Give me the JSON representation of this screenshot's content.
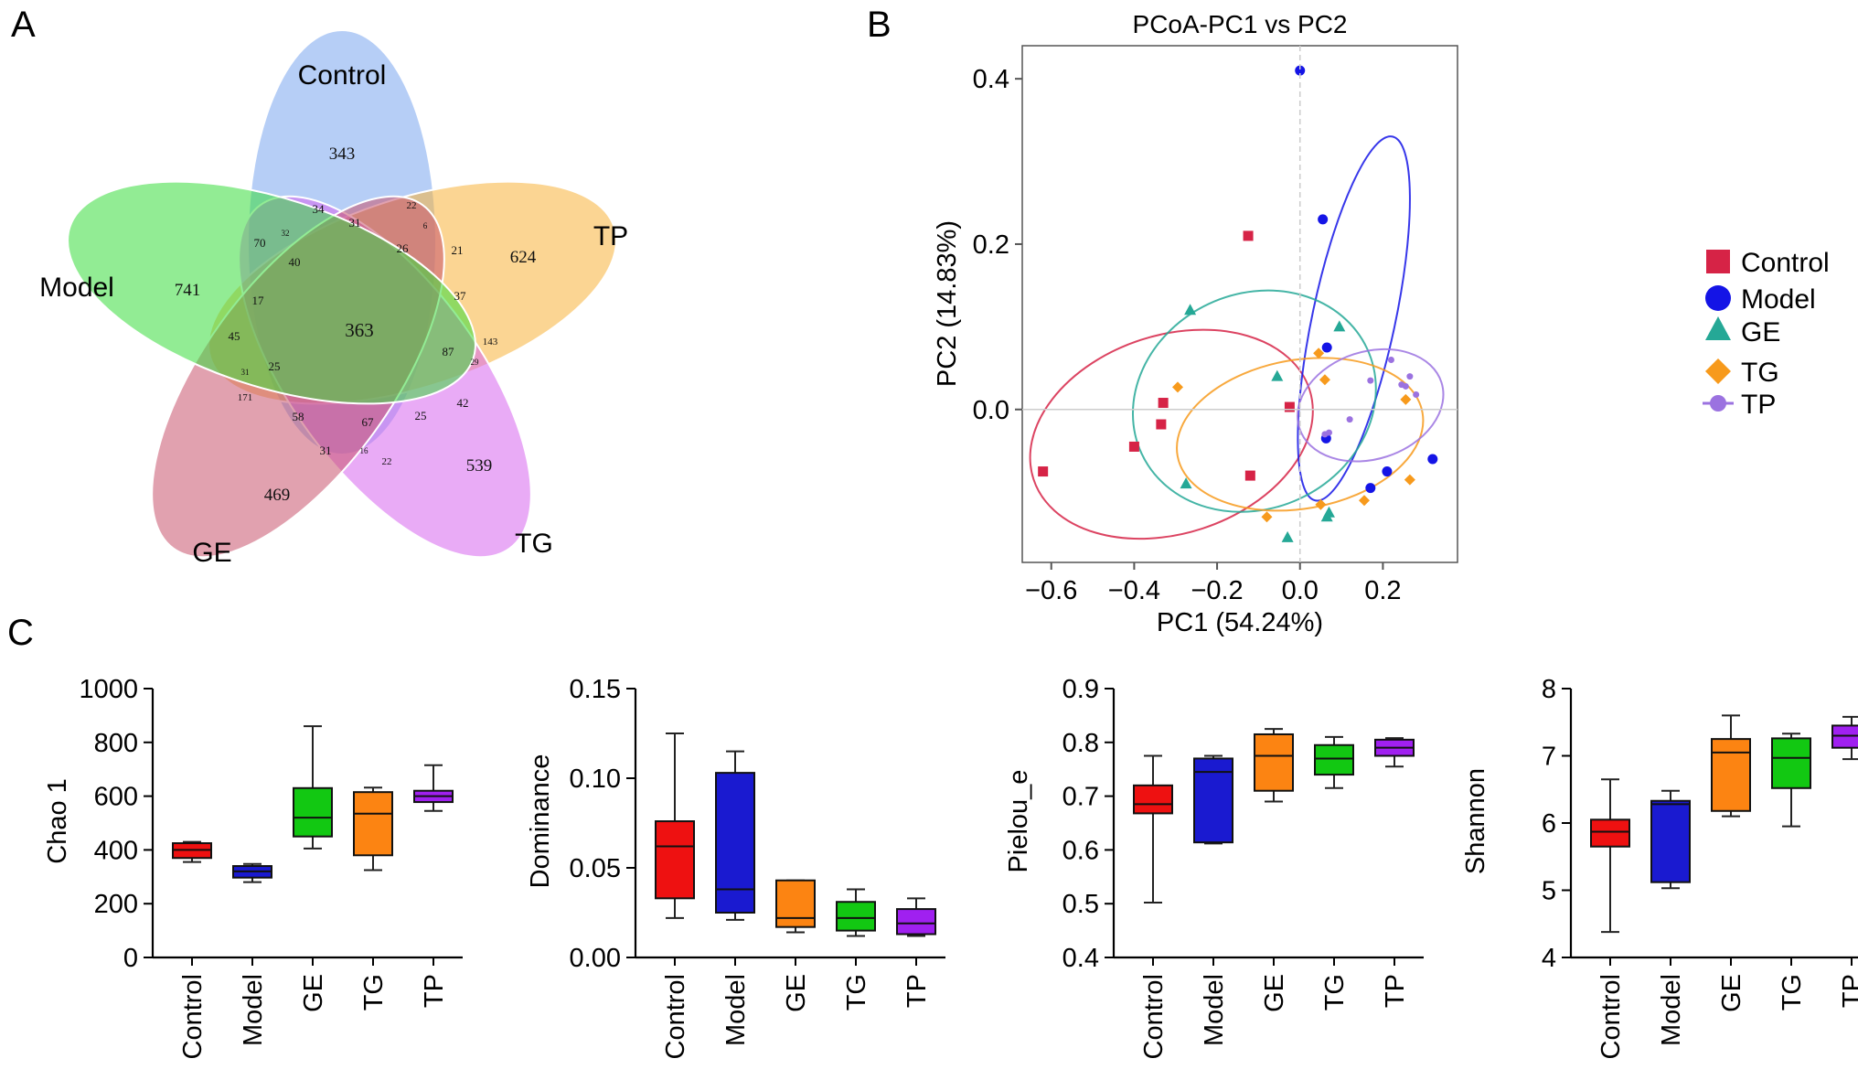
{
  "panel_labels": {
    "a": "A",
    "b": "B",
    "c": "C"
  },
  "venn": {
    "sets": [
      {
        "name": "Control",
        "color": "#7aa6ee",
        "unique": "343"
      },
      {
        "name": "TP",
        "color": "#f7b23a",
        "unique": "624"
      },
      {
        "name": "TG",
        "color": "#d766ee",
        "unique": "539"
      },
      {
        "name": "GE",
        "color": "#c8546e",
        "unique": "469"
      },
      {
        "name": "Model",
        "color": "#38dd3c",
        "unique": "741"
      }
    ],
    "core": "363",
    "region_values": [
      "34",
      "22",
      "31",
      "70",
      "32",
      "40",
      "26",
      "21",
      "6",
      "17",
      "37",
      "45",
      "143",
      "29",
      "87",
      "25",
      "31",
      "171",
      "58",
      "42",
      "25",
      "67",
      "31",
      "16",
      "22"
    ]
  },
  "chart_data": [
    {
      "type": "scatter",
      "title": "PCoA-PC1 vs PC2",
      "xlabel": "PC1 (54.24%)",
      "ylabel": "PC2 (14.83%)",
      "xlim": [
        -0.67,
        0.38
      ],
      "ylim": [
        -0.185,
        0.44
      ],
      "xticks": [
        "−0.6",
        "−0.4",
        "−0.2",
        "0.0",
        "0.2"
      ],
      "xtick_values": [
        -0.6,
        -0.4,
        -0.2,
        0.0,
        0.2
      ],
      "yticks": [
        "0.0",
        "0.2",
        "0.4"
      ],
      "ytick_values": [
        0.0,
        0.2,
        0.4
      ],
      "legend_position": "right",
      "series": [
        {
          "name": "Control",
          "color": "#d62346",
          "marker": "square",
          "points": [
            [
              -0.62,
              -0.075
            ],
            [
              -0.4,
              -0.045
            ],
            [
              -0.33,
              0.008
            ],
            [
              -0.335,
              -0.018
            ],
            [
              -0.125,
              0.21
            ],
            [
              -0.12,
              -0.08
            ],
            [
              -0.025,
              0.003
            ]
          ],
          "ellipse": {
            "cx": -0.31,
            "cy": -0.03,
            "rx": 0.35,
            "ry": 0.12,
            "angle": 18
          }
        },
        {
          "name": "Model",
          "color": "#1414e6",
          "marker": "circle",
          "points": [
            [
              0.0,
              0.41
            ],
            [
              0.055,
              0.23
            ],
            [
              0.065,
              0.075
            ],
            [
              0.063,
              -0.035
            ],
            [
              0.17,
              -0.095
            ],
            [
              0.21,
              -0.075
            ],
            [
              0.32,
              -0.06
            ]
          ],
          "ellipse": {
            "cx": 0.13,
            "cy": 0.11,
            "rx": 0.1,
            "ry": 0.225,
            "angle": -12
          }
        },
        {
          "name": "GE",
          "color": "#25a896",
          "marker": "triangle",
          "points": [
            [
              -0.265,
              0.12
            ],
            [
              -0.055,
              0.04
            ],
            [
              -0.275,
              -0.09
            ],
            [
              -0.03,
              -0.155
            ],
            [
              0.095,
              0.1
            ],
            [
              0.065,
              -0.13
            ],
            [
              0.07,
              -0.125
            ]
          ],
          "ellipse": {
            "cx": -0.11,
            "cy": 0.01,
            "rx": 0.3,
            "ry": 0.13,
            "angle": 25
          }
        },
        {
          "name": "TG",
          "color": "#f79a1c",
          "marker": "diamond",
          "points": [
            [
              -0.295,
              0.027
            ],
            [
              -0.08,
              -0.13
            ],
            [
              0.045,
              0.068
            ],
            [
              0.05,
              -0.115
            ],
            [
              0.06,
              0.036
            ],
            [
              0.155,
              -0.11
            ],
            [
              0.255,
              0.012
            ],
            [
              0.265,
              -0.085
            ]
          ],
          "ellipse": {
            "cx": 0.0,
            "cy": -0.03,
            "rx": 0.3,
            "ry": 0.09,
            "angle": 10
          }
        },
        {
          "name": "TP",
          "color": "#9b72e0",
          "marker": "small-circle",
          "points": [
            [
              0.06,
              -0.03
            ],
            [
              0.07,
              -0.028
            ],
            [
              0.12,
              -0.012
            ],
            [
              0.17,
              0.035
            ],
            [
              0.22,
              0.06
            ],
            [
              0.245,
              0.03
            ],
            [
              0.255,
              0.028
            ],
            [
              0.265,
              0.04
            ],
            [
              0.28,
              0.018
            ]
          ],
          "ellipse": {
            "cx": 0.17,
            "cy": 0.005,
            "rx": 0.18,
            "ry": 0.065,
            "angle": 18
          }
        }
      ]
    },
    {
      "type": "box",
      "ylabel": "Chao 1",
      "ylim": [
        0,
        1000
      ],
      "yticks": [
        "0",
        "200",
        "400",
        "600",
        "800",
        "1000"
      ],
      "ytick_values": [
        0,
        200,
        400,
        600,
        800,
        1000
      ],
      "categories": [
        "Control",
        "Model",
        "GE",
        "TG",
        "TP"
      ],
      "colors": [
        "#ee1111",
        "#1a1ad0",
        "#12c812",
        "#fc8412",
        "#a020f0"
      ],
      "boxes": [
        {
          "min": 355,
          "q1": 370,
          "median": 400,
          "q3": 425,
          "max": 430
        },
        {
          "min": 280,
          "q1": 297,
          "median": 320,
          "q3": 340,
          "max": 348
        },
        {
          "min": 405,
          "q1": 450,
          "median": 520,
          "q3": 630,
          "max": 860
        },
        {
          "min": 325,
          "q1": 380,
          "median": 535,
          "q3": 615,
          "max": 632
        },
        {
          "min": 545,
          "q1": 578,
          "median": 600,
          "q3": 620,
          "max": 715
        }
      ]
    },
    {
      "type": "box",
      "ylabel": "Dominance",
      "ylim": [
        0,
        0.15
      ],
      "yticks": [
        "0.00",
        "0.05",
        "0.10",
        "0.15"
      ],
      "ytick_values": [
        0,
        0.05,
        0.1,
        0.15
      ],
      "categories": [
        "Control",
        "Model",
        "GE",
        "TG",
        "TP"
      ],
      "colors": [
        "#ee1111",
        "#1a1ad0",
        "#fc8412",
        "#12c812",
        "#a020f0"
      ],
      "boxes": [
        {
          "min": 0.022,
          "q1": 0.033,
          "median": 0.062,
          "q3": 0.076,
          "max": 0.125
        },
        {
          "min": 0.021,
          "q1": 0.025,
          "median": 0.038,
          "q3": 0.103,
          "max": 0.115
        },
        {
          "min": 0.014,
          "q1": 0.017,
          "median": 0.022,
          "q3": 0.043,
          "max": 0.043
        },
        {
          "min": 0.012,
          "q1": 0.015,
          "median": 0.022,
          "q3": 0.031,
          "max": 0.038
        },
        {
          "min": 0.012,
          "q1": 0.013,
          "median": 0.019,
          "q3": 0.027,
          "max": 0.033
        }
      ]
    },
    {
      "type": "box",
      "ylabel": "Pielou_e",
      "ylim": [
        0.4,
        0.9
      ],
      "yticks": [
        "0.4",
        "0.5",
        "0.6",
        "0.7",
        "0.8",
        "0.9"
      ],
      "ytick_values": [
        0.4,
        0.5,
        0.6,
        0.7,
        0.8,
        0.9
      ],
      "categories": [
        "Control",
        "Model",
        "GE",
        "TG",
        "TP"
      ],
      "colors": [
        "#ee1111",
        "#1a1ad0",
        "#fc8412",
        "#12c812",
        "#a020f0"
      ],
      "boxes": [
        {
          "min": 0.502,
          "q1": 0.668,
          "median": 0.685,
          "q3": 0.72,
          "max": 0.775
        },
        {
          "min": 0.612,
          "q1": 0.614,
          "median": 0.745,
          "q3": 0.77,
          "max": 0.775
        },
        {
          "min": 0.69,
          "q1": 0.71,
          "median": 0.775,
          "q3": 0.815,
          "max": 0.825
        },
        {
          "min": 0.715,
          "q1": 0.74,
          "median": 0.77,
          "q3": 0.795,
          "max": 0.81
        },
        {
          "min": 0.755,
          "q1": 0.775,
          "median": 0.79,
          "q3": 0.805,
          "max": 0.808
        }
      ]
    },
    {
      "type": "box",
      "ylabel": "Shannon",
      "ylim": [
        4,
        8
      ],
      "yticks": [
        "4",
        "5",
        "6",
        "7",
        "8"
      ],
      "ytick_values": [
        4,
        5,
        6,
        7,
        8
      ],
      "categories": [
        "Control",
        "Model",
        "GE",
        "TG",
        "TP"
      ],
      "colors": [
        "#ee1111",
        "#1a1ad0",
        "#fc8412",
        "#12c812",
        "#a020f0"
      ],
      "boxes": [
        {
          "min": 4.38,
          "q1": 5.65,
          "median": 5.87,
          "q3": 6.05,
          "max": 6.65
        },
        {
          "min": 5.03,
          "q1": 5.12,
          "median": 6.28,
          "q3": 6.33,
          "max": 6.48
        },
        {
          "min": 6.1,
          "q1": 6.18,
          "median": 7.05,
          "q3": 7.25,
          "max": 7.6
        },
        {
          "min": 5.95,
          "q1": 6.52,
          "median": 6.97,
          "q3": 7.26,
          "max": 7.33
        },
        {
          "min": 6.95,
          "q1": 7.12,
          "median": 7.3,
          "q3": 7.45,
          "max": 7.58
        }
      ]
    }
  ]
}
